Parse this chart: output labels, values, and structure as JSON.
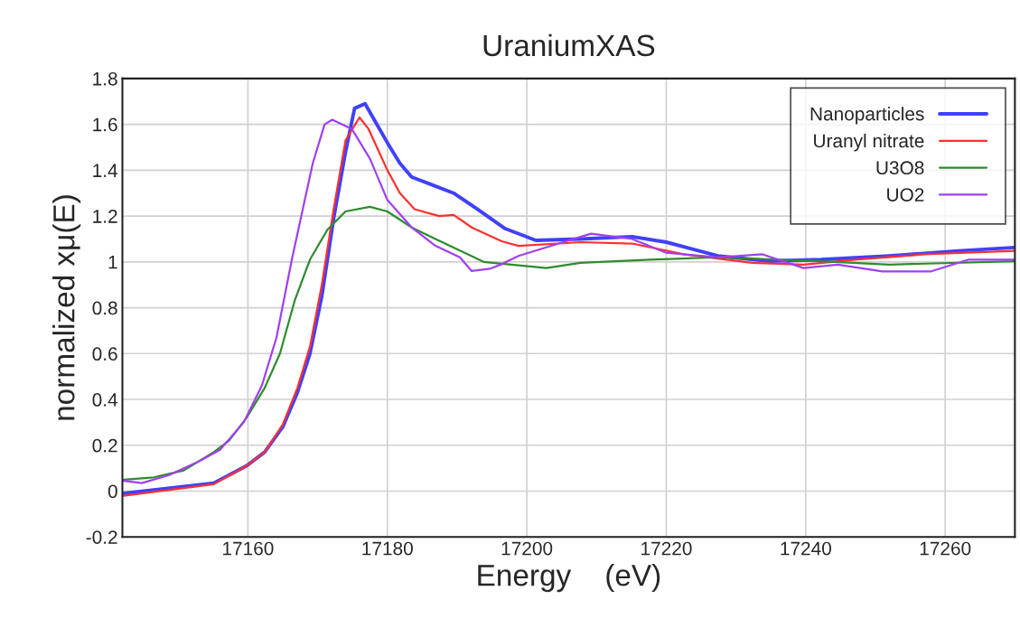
{
  "chart_data": {
    "type": "line",
    "title": "UraniumXAS",
    "xlabel": "Energy    (eV)",
    "ylabel": "normalized xμ(E)",
    "xlim": [
      17142,
      17270
    ],
    "xticks": [
      17160,
      17180,
      17200,
      17220,
      17240,
      17260
    ],
    "ylim": [
      -0.2,
      1.8
    ],
    "yticks": [
      -0.2,
      0,
      0.2,
      0.4,
      0.6,
      0.8,
      1,
      1.2,
      1.4,
      1.6,
      1.8
    ],
    "grid": true,
    "legend": "top right",
    "marker": "none",
    "line_style": "solid",
    "series": [
      {
        "name": "Nanoparticles",
        "color": "#4040ff",
        "x": [
          17142.2,
          17155.1,
          17159.8,
          17162.4,
          17165,
          17167.1,
          17168.9,
          17170.6,
          17172.3,
          17174,
          17175.3,
          17176.8,
          17178.3,
          17180,
          17181.8,
          17183.5,
          17186.1,
          17189.5,
          17192.9,
          17196.9,
          17201.3,
          17207.7,
          17215.1,
          17220,
          17227.4,
          17234.8,
          17242.2,
          17252,
          17261.9,
          17270
        ],
        "values": [
          -0.01,
          0.035,
          0.11,
          0.17,
          0.28,
          0.43,
          0.6,
          0.85,
          1.19,
          1.48,
          1.67,
          1.69,
          1.61,
          1.52,
          1.43,
          1.37,
          1.34,
          1.3,
          1.23,
          1.145,
          1.094,
          1.1,
          1.11,
          1.086,
          1.026,
          1.003,
          1.01,
          1.026,
          1.048,
          1.063
        ]
      },
      {
        "name": "Uranyl nitrate",
        "color": "#ff3030",
        "x": [
          17142.2,
          17155.1,
          17159.8,
          17162.4,
          17165,
          17167.1,
          17168.9,
          17170.6,
          17172.3,
          17174,
          17176,
          17177.3,
          17178.8,
          17180,
          17181.8,
          17183.9,
          17187.4,
          17189.5,
          17192.1,
          17196.4,
          17198.8,
          17207.7,
          17215.1,
          17222.5,
          17232.3,
          17239.7,
          17247.1,
          17256.9,
          17270
        ],
        "values": [
          -0.02,
          0.03,
          0.11,
          0.17,
          0.29,
          0.45,
          0.63,
          0.9,
          1.23,
          1.53,
          1.63,
          1.58,
          1.48,
          1.4,
          1.3,
          1.23,
          1.2,
          1.205,
          1.15,
          1.09,
          1.07,
          1.086,
          1.08,
          1.033,
          0.996,
          0.988,
          1.01,
          1.033,
          1.048
        ]
      },
      {
        "name": "U3O8",
        "color": "#2e8b2e",
        "x": [
          17142.2,
          17146.5,
          17150.8,
          17155.1,
          17157.3,
          17159.8,
          17162.4,
          17164.6,
          17166.7,
          17168.9,
          17171.4,
          17174,
          17177.5,
          17180,
          17183.5,
          17186.9,
          17190.4,
          17193.8,
          17197.8,
          17202.8,
          17207.7,
          17217.6,
          17227.4,
          17242.2,
          17252,
          17270
        ],
        "values": [
          0.05,
          0.06,
          0.09,
          0.17,
          0.22,
          0.32,
          0.45,
          0.6,
          0.83,
          1.01,
          1.14,
          1.22,
          1.24,
          1.22,
          1.15,
          1.1,
          1.05,
          1.0,
          0.988,
          0.973,
          0.996,
          1.01,
          1.02,
          1.003,
          0.988,
          1.003
        ]
      },
      {
        "name": "UO2",
        "color": "#a040f0",
        "x": [
          17142.2,
          17144.8,
          17148.7,
          17153,
          17156,
          17159.4,
          17162,
          17164.1,
          17166.3,
          17169.3,
          17171,
          17172.1,
          17174.9,
          17177.5,
          17180,
          17183.5,
          17186.9,
          17190.4,
          17192.1,
          17194.7,
          17196.4,
          17198.8,
          17205.2,
          17209.2,
          17215.1,
          17220,
          17227.4,
          17233.8,
          17239.7,
          17244.6,
          17251,
          17257.9,
          17263.4,
          17270
        ],
        "values": [
          0.045,
          0.035,
          0.07,
          0.13,
          0.18,
          0.3,
          0.46,
          0.67,
          1.01,
          1.43,
          1.6,
          1.62,
          1.58,
          1.45,
          1.27,
          1.15,
          1.07,
          1.02,
          0.96,
          0.97,
          0.99,
          1.026,
          1.086,
          1.123,
          1.1,
          1.04,
          1.02,
          1.033,
          0.973,
          0.988,
          0.958,
          0.958,
          1.01,
          1.01
        ]
      }
    ]
  }
}
